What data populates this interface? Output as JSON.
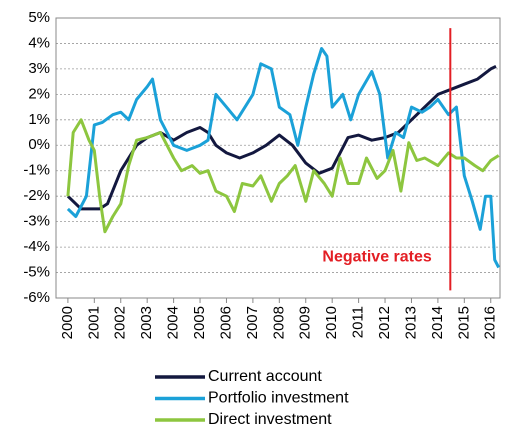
{
  "chart_data": {
    "type": "line",
    "xlim": [
      1999.55,
      2016.35
    ],
    "xticks": [
      2000,
      2001,
      2002,
      2003,
      2004,
      2005,
      2006,
      2007,
      2008,
      2009,
      2010,
      2011,
      2012,
      2013,
      2014,
      2015,
      2016
    ],
    "ylim": [
      -6,
      5
    ],
    "yticks": [
      {
        "value": -6,
        "label": "-6%"
      },
      {
        "value": -5,
        "label": "-5%"
      },
      {
        "value": -4,
        "label": "-4%"
      },
      {
        "value": -3,
        "label": "-3%"
      },
      {
        "value": -2,
        "label": "-2%"
      },
      {
        "value": -1,
        "label": "-1%"
      },
      {
        "value": 0,
        "label": "0%"
      },
      {
        "value": 1,
        "label": "1%"
      },
      {
        "value": 2,
        "label": "2%"
      },
      {
        "value": 3,
        "label": "3%"
      },
      {
        "value": 4,
        "label": "4%"
      },
      {
        "value": 5,
        "label": "5%"
      }
    ],
    "grid": true,
    "vline": {
      "x": 2014.47,
      "y": [
        4.6,
        -5.7
      ],
      "color": "#e31e24"
    },
    "annotation": {
      "text": "Negative rates",
      "x": 2011.7,
      "y": -4.4,
      "color": "#e31e24"
    },
    "series": [
      {
        "name": "Current account",
        "color": "#13183f",
        "x": [
          2000,
          2000.5,
          2001.2,
          2001.5,
          2002,
          2002.6,
          2003,
          2003.5,
          2004,
          2004.5,
          2005,
          2005.3,
          2005.6,
          2006,
          2006.5,
          2007,
          2007.5,
          2008,
          2008.5,
          2009,
          2009.5,
          2010,
          2010.3,
          2010.6,
          2011,
          2011.5,
          2012,
          2012.5,
          2013,
          2013.5,
          2014,
          2014.5,
          2015,
          2015.5,
          2016,
          2016.2
        ],
        "values": [
          -2.0,
          -2.5,
          -2.5,
          -2.3,
          -1.0,
          0.0,
          0.3,
          0.5,
          0.2,
          0.5,
          0.7,
          0.5,
          0.0,
          -0.3,
          -0.5,
          -0.3,
          0.0,
          0.4,
          0.0,
          -0.7,
          -1.1,
          -0.9,
          -0.3,
          0.3,
          0.4,
          0.2,
          0.3,
          0.5,
          1.0,
          1.5,
          2.0,
          2.2,
          2.4,
          2.6,
          3.0,
          3.1
        ]
      },
      {
        "name": "Portfolio investment",
        "color": "#1ba1d8",
        "x": [
          2000,
          2000.3,
          2000.7,
          2001,
          2001.3,
          2001.7,
          2002,
          2002.3,
          2002.6,
          2003,
          2003.2,
          2003.5,
          2004,
          2004.5,
          2005,
          2005.3,
          2005.6,
          2006,
          2006.4,
          2006.7,
          2007,
          2007.3,
          2007.7,
          2008,
          2008.4,
          2008.7,
          2009,
          2009.3,
          2009.6,
          2009.8,
          2010,
          2010.4,
          2010.7,
          2011,
          2011.5,
          2011.8,
          2012.1,
          2012.4,
          2012.7,
          2013,
          2013.4,
          2013.7,
          2014,
          2014.4,
          2014.7,
          2015,
          2015.3,
          2015.6,
          2015.8,
          2016,
          2016.15,
          2016.3
        ],
        "values": [
          -2.5,
          -2.8,
          -2.0,
          0.8,
          0.9,
          1.2,
          1.3,
          1.0,
          1.8,
          2.3,
          2.6,
          1.0,
          0.0,
          -0.2,
          0.0,
          0.2,
          2.0,
          1.5,
          1.0,
          1.5,
          2.0,
          3.2,
          3.0,
          1.5,
          1.2,
          0.0,
          1.5,
          2.8,
          3.8,
          3.5,
          1.5,
          2.0,
          1.0,
          2.0,
          2.9,
          2.0,
          -0.5,
          0.5,
          0.3,
          1.5,
          1.3,
          1.5,
          1.8,
          1.2,
          1.5,
          -1.2,
          -2.2,
          -3.3,
          -2.0,
          -2.0,
          -4.5,
          -4.8
        ]
      },
      {
        "name": "Direct investment",
        "color": "#8dc63f",
        "x": [
          2000,
          2000.2,
          2000.5,
          2000.8,
          2001,
          2001.2,
          2001.4,
          2001.7,
          2002,
          2002.3,
          2002.6,
          2003,
          2003.5,
          2004,
          2004.3,
          2004.7,
          2005,
          2005.3,
          2005.6,
          2006,
          2006.3,
          2006.6,
          2007,
          2007.3,
          2007.7,
          2008,
          2008.3,
          2008.6,
          2009,
          2009.3,
          2009.7,
          2010,
          2010.3,
          2010.6,
          2011,
          2011.3,
          2011.7,
          2012,
          2012.3,
          2012.6,
          2012.9,
          2013.2,
          2013.5,
          2014,
          2014.4,
          2014.7,
          2015,
          2015.4,
          2015.7,
          2016,
          2016.3
        ],
        "values": [
          -2.0,
          0.5,
          1.0,
          0.2,
          -0.2,
          -2.0,
          -3.4,
          -2.8,
          -2.3,
          -0.8,
          0.2,
          0.3,
          0.5,
          -0.5,
          -1.0,
          -0.8,
          -1.1,
          -1.0,
          -1.8,
          -2.0,
          -2.6,
          -1.5,
          -1.6,
          -1.2,
          -2.2,
          -1.5,
          -1.2,
          -0.8,
          -2.2,
          -1.0,
          -1.5,
          -2.0,
          -0.5,
          -1.5,
          -1.5,
          -0.5,
          -1.3,
          -1.0,
          -0.2,
          -1.8,
          0.1,
          -0.6,
          -0.5,
          -0.8,
          -0.3,
          -0.5,
          -0.5,
          -0.8,
          -1.0,
          -0.6,
          -0.4
        ]
      }
    ]
  }
}
